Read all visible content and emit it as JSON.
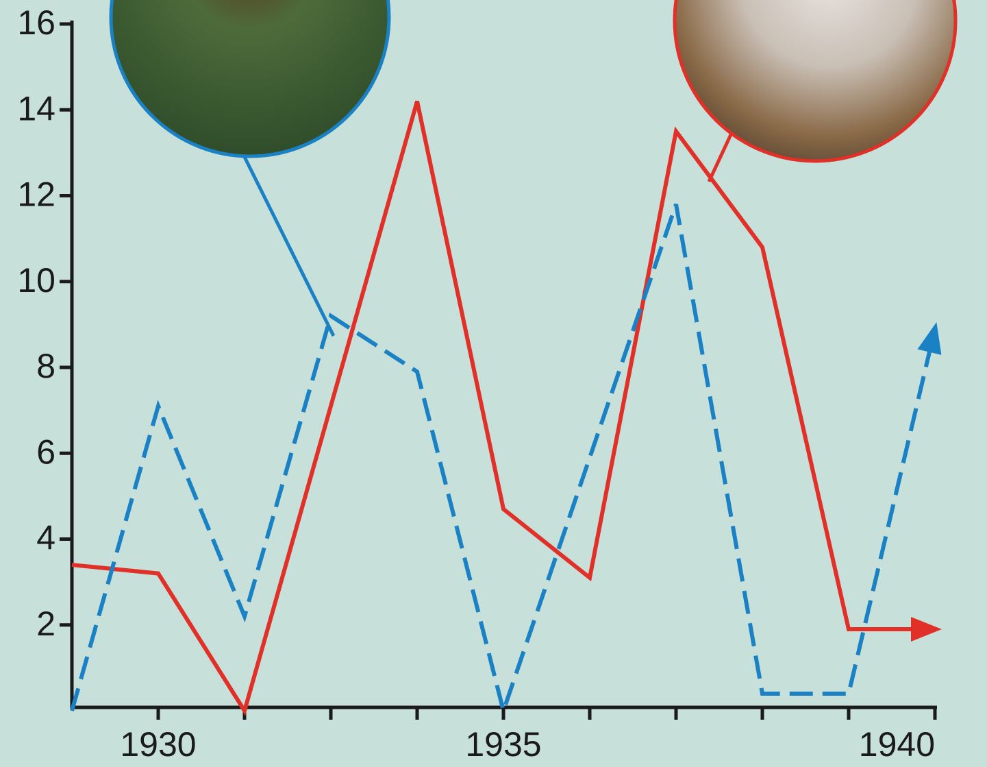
{
  "chart_data": {
    "type": "line",
    "categories": [
      null,
      "1930",
      null,
      null,
      null,
      "1935",
      null,
      null,
      null,
      null,
      "1940"
    ],
    "series": [
      {
        "name": null,
        "color": "#e03028",
        "dash": false,
        "values": [
          3.4,
          3.2,
          0,
          7.1,
          14.2,
          4.7,
          3.1,
          13.5,
          10.8,
          1.9,
          1.9
        ]
      },
      {
        "name": null,
        "color": "#1a82c4",
        "dash": true,
        "values": [
          0,
          7.1,
          2.2,
          9.2,
          7.9,
          0,
          5.9,
          11.8,
          0.4,
          0.4,
          8.9
        ]
      }
    ],
    "ylim": [
      0,
      16
    ],
    "yticks": [
      2,
      4,
      6,
      8,
      10,
      12,
      14,
      16
    ],
    "grid": false
  }
}
